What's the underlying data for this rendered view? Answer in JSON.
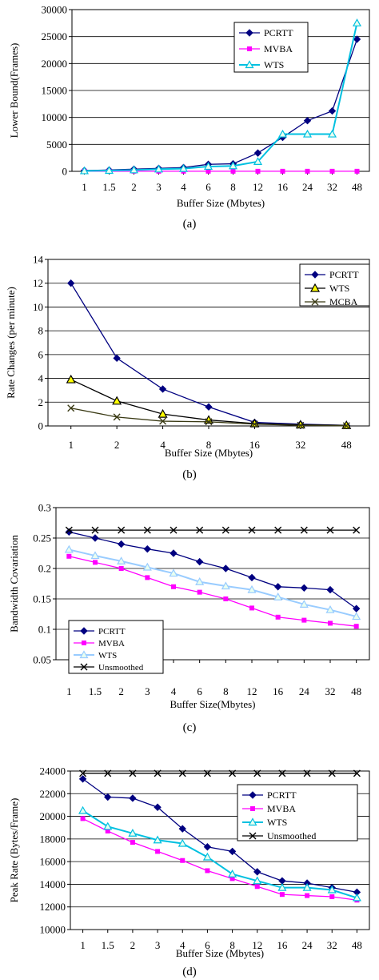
{
  "chart_data": [
    {
      "type": "line",
      "caption": "(a)",
      "xlabel": "Buffer Size (Mbytes)",
      "ylabel": "Lower Bound(Frames)",
      "categories": [
        "1",
        "1.5",
        "2",
        "3",
        "4",
        "6",
        "8",
        "12",
        "16",
        "24",
        "32",
        "48"
      ],
      "ylim": [
        0,
        30000
      ],
      "yticks": [
        "0",
        "5000",
        "10000",
        "15000",
        "20000",
        "25000",
        "30000"
      ],
      "grid": "horizontal",
      "legend": "top-right",
      "series": [
        {
          "name": "PCRTT",
          "color": "#000080",
          "marker": "diamond",
          "values": [
            150,
            250,
            400,
            550,
            700,
            1300,
            1400,
            3400,
            6300,
            9400,
            11200,
            24500
          ]
        },
        {
          "name": "MVBA",
          "color": "#ff00ff",
          "marker": "square",
          "values": [
            20,
            20,
            20,
            20,
            20,
            20,
            20,
            20,
            20,
            20,
            20,
            20
          ]
        },
        {
          "name": "WTS",
          "color": "#00c0e0",
          "marker": "triangle",
          "values": [
            80,
            150,
            250,
            400,
            500,
            900,
            1000,
            1800,
            6900,
            6900,
            6900,
            27500
          ]
        }
      ]
    },
    {
      "type": "line",
      "caption": "(b)",
      "xlabel": "Buffer Size (Mbytes)",
      "ylabel": "Rate Changes (per minute)",
      "categories": [
        "1",
        "2",
        "4",
        "8",
        "16",
        "32",
        "48"
      ],
      "ylim": [
        0,
        14
      ],
      "yticks": [
        "0",
        "2",
        "4",
        "6",
        "8",
        "10",
        "12",
        "14"
      ],
      "grid": "horizontal",
      "legend": "top-right",
      "series": [
        {
          "name": "PCRTT",
          "color": "#000080",
          "marker": "diamond",
          "values": [
            12.0,
            5.7,
            3.1,
            1.6,
            0.3,
            0.15,
            0.05
          ]
        },
        {
          "name": "WTS",
          "color": "#000000",
          "marker": "triangle-yellow",
          "values": [
            3.9,
            2.1,
            1.0,
            0.5,
            0.2,
            0.1,
            0.05
          ]
        },
        {
          "name": "MCBA",
          "color": "#3a3a14",
          "marker": "x",
          "values": [
            1.5,
            0.75,
            0.4,
            0.35,
            0.15,
            0.05,
            0.02
          ]
        }
      ]
    },
    {
      "type": "line",
      "caption": "(c)",
      "xlabel": "Buffer Size(Mbytes)",
      "ylabel": "Bandwidth Covariation",
      "categories": [
        "1",
        "1.5",
        "2",
        "3",
        "4",
        "6",
        "8",
        "12",
        "16",
        "24",
        "32",
        "48"
      ],
      "ylim": [
        0.05,
        0.3
      ],
      "yticks": [
        "0.05",
        "0.1",
        "0.15",
        "0.2",
        "0.25",
        "0.3"
      ],
      "grid": "horizontal",
      "legend": "bottom-left",
      "series": [
        {
          "name": "PCRTT",
          "color": "#000080",
          "marker": "diamond",
          "values": [
            0.26,
            0.25,
            0.24,
            0.232,
            0.225,
            0.211,
            0.2,
            0.185,
            0.17,
            0.168,
            0.165,
            0.134
          ]
        },
        {
          "name": "MVBA",
          "color": "#ff00ff",
          "marker": "square",
          "values": [
            0.22,
            0.21,
            0.2,
            0.185,
            0.17,
            0.161,
            0.15,
            0.135,
            0.12,
            0.115,
            0.11,
            0.105
          ]
        },
        {
          "name": "WTS",
          "color": "#99ccff",
          "marker": "triangle",
          "values": [
            0.231,
            0.221,
            0.212,
            0.202,
            0.192,
            0.178,
            0.171,
            0.165,
            0.153,
            0.141,
            0.132,
            0.121
          ]
        },
        {
          "name": "Unsmoothed",
          "color": "#000000",
          "marker": "x",
          "values": [
            0.263,
            0.263,
            0.263,
            0.263,
            0.263,
            0.263,
            0.263,
            0.263,
            0.263,
            0.263,
            0.263,
            0.263
          ]
        }
      ]
    },
    {
      "type": "line",
      "caption": "(d)",
      "xlabel": "Buffer Size (Mbytes)",
      "ylabel": "Peak Rate (Bytes/Frame)",
      "categories": [
        "1",
        "1.5",
        "2",
        "3",
        "4",
        "6",
        "8",
        "12",
        "16",
        "24",
        "32",
        "48"
      ],
      "ylim": [
        10000,
        24000
      ],
      "yticks": [
        "10000",
        "12000",
        "14000",
        "16000",
        "18000",
        "20000",
        "22000",
        "24000"
      ],
      "grid": "horizontal",
      "legend": "top-right",
      "series": [
        {
          "name": "PCRTT",
          "color": "#000080",
          "marker": "diamond",
          "values": [
            23300,
            21700,
            21600,
            20800,
            18900,
            17300,
            16900,
            15100,
            14300,
            14100,
            13700,
            13300
          ]
        },
        {
          "name": "MVBA",
          "color": "#ff00ff",
          "marker": "square",
          "values": [
            19800,
            18700,
            17700,
            16900,
            16100,
            15200,
            14500,
            13800,
            13100,
            13000,
            12900,
            12600
          ]
        },
        {
          "name": "WTS",
          "color": "#00c0e0",
          "marker": "triangle",
          "values": [
            20500,
            19100,
            18500,
            17900,
            17600,
            16400,
            14900,
            14300,
            13700,
            13700,
            13500,
            12800
          ]
        },
        {
          "name": "Unsmoothed",
          "color": "#000000",
          "marker": "x",
          "values": [
            23800,
            23800,
            23800,
            23800,
            23800,
            23800,
            23800,
            23800,
            23800,
            23800,
            23800,
            23800
          ]
        }
      ]
    }
  ]
}
